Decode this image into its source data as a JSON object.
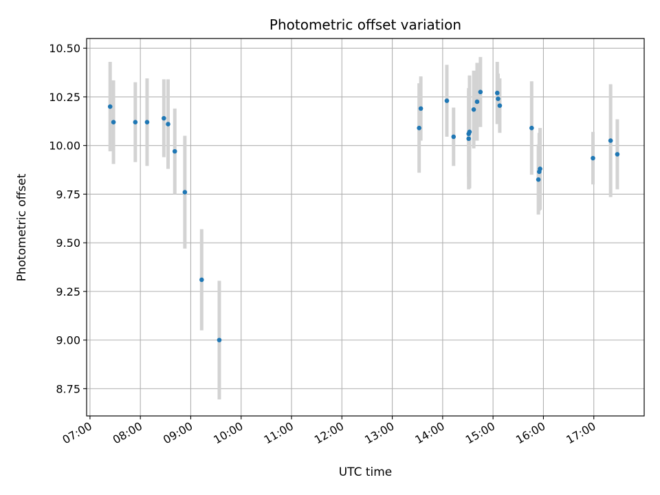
{
  "chart_data": {
    "type": "scatter",
    "title": "Photometric offset variation",
    "xlabel": "UTC time",
    "ylabel": "Photometric offset",
    "x_tick_labels": [
      "07:00",
      "08:00",
      "09:00",
      "10:00",
      "11:00",
      "12:00",
      "13:00",
      "14:00",
      "15:00",
      "16:00",
      "17:00"
    ],
    "y_tick_labels": [
      "8.75",
      "9.00",
      "9.25",
      "9.50",
      "9.75",
      "10.00",
      "10.25",
      "10.50"
    ],
    "xlim": [
      "06:56",
      "18:00"
    ],
    "ylim": [
      8.61,
      10.55
    ],
    "grid": true,
    "point_color": "#1f77b4",
    "errorbar_color": "#d3d3d3",
    "x_time": [
      "07:24",
      "07:28",
      "07:54",
      "08:08",
      "08:28",
      "08:33",
      "08:41",
      "08:53",
      "09:13",
      "09:34",
      "13:32",
      "13:34",
      "14:05",
      "14:13",
      "14:31",
      "14:31",
      "14:32",
      "14:37",
      "14:41",
      "14:45",
      "15:05",
      "15:06",
      "15:08",
      "15:46",
      "15:54",
      "15:55",
      "15:56",
      "16:59",
      "17:20",
      "17:28"
    ],
    "y": [
      10.2,
      10.12,
      10.12,
      10.12,
      10.14,
      10.11,
      9.97,
      9.76,
      9.31,
      9.0,
      10.09,
      10.19,
      10.23,
      10.045,
      10.06,
      10.035,
      10.07,
      10.185,
      10.225,
      10.275,
      10.27,
      10.24,
      10.205,
      10.09,
      9.825,
      9.865,
      9.88,
      9.935,
      10.025,
      9.955
    ],
    "yerr": [
      0.23,
      0.215,
      0.205,
      0.225,
      0.2,
      0.23,
      0.22,
      0.29,
      0.26,
      0.305,
      0.23,
      0.165,
      0.185,
      0.15,
      0.22,
      0.26,
      0.29,
      0.2,
      0.2,
      0.18,
      0.16,
      0.13,
      0.14,
      0.24,
      0.18,
      0.2,
      0.21,
      0.135,
      0.29,
      0.18
    ]
  }
}
